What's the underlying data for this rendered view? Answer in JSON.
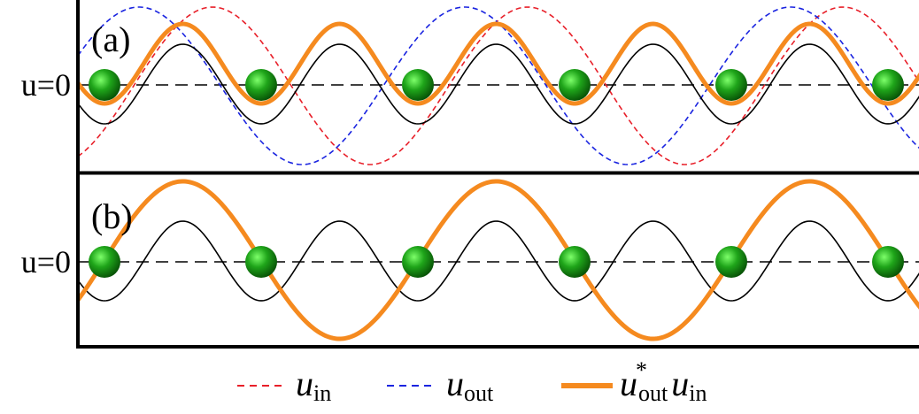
{
  "panels": [
    {
      "label": "(a)",
      "axis_label": "u=0"
    },
    {
      "label": "(b)",
      "axis_label": "u=0"
    }
  ],
  "legend": [
    {
      "parts": [
        "u",
        "in"
      ]
    },
    {
      "parts": [
        "u",
        "out"
      ]
    },
    {
      "parts": [
        "u",
        "*",
        "out",
        "u",
        "in"
      ]
    }
  ]
}
